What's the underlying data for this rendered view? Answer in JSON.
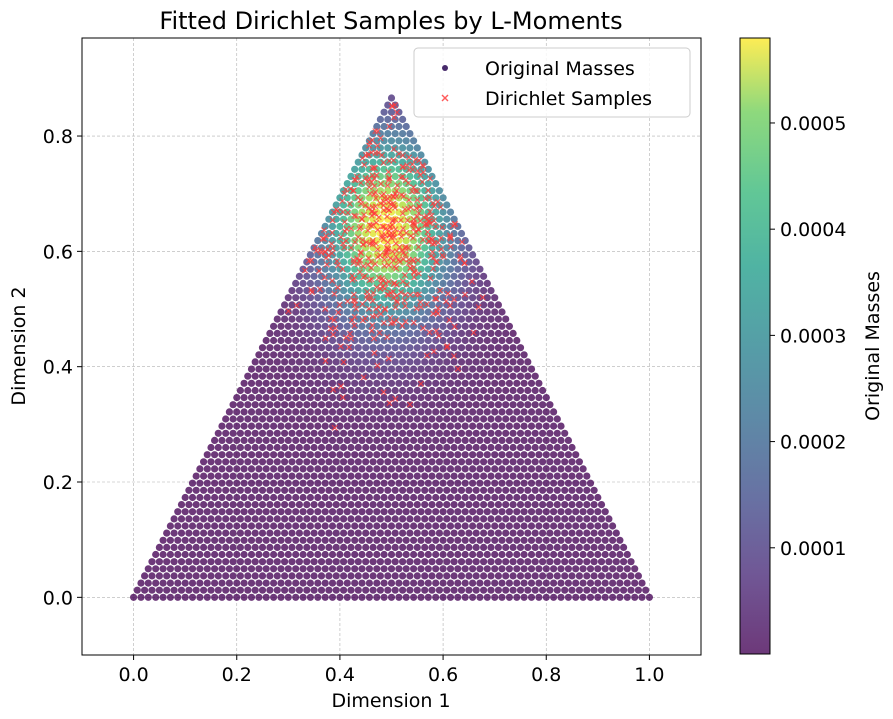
{
  "chart_data": {
    "type": "scatter",
    "title": "Fitted Dirichlet Samples by L-Moments",
    "xlabel": "Dimension 1",
    "ylabel": "Dimension 2",
    "xlim": [
      -0.1,
      1.1
    ],
    "ylim": [
      -0.1,
      0.97
    ],
    "xticks": [
      "0.0",
      "0.2",
      "0.4",
      "0.6",
      "0.8",
      "1.0"
    ],
    "yticks": [
      "0.0",
      "0.2",
      "0.4",
      "0.6",
      "0.8"
    ],
    "grid": true,
    "legend_position": "upper-right",
    "simplex_vertices": [
      [
        0.0,
        0.0
      ],
      [
        1.0,
        0.0
      ],
      [
        0.5,
        0.866
      ]
    ],
    "series": [
      {
        "name": "Original Masses",
        "marker": "circle",
        "color_map": "viridis",
        "legend_color": "#472a6b",
        "peak": [
          0.49,
          0.64
        ],
        "spread": [
          0.085,
          0.11
        ],
        "max_mass": 0.00058
      },
      {
        "name": "Dirichlet Samples",
        "marker": "x",
        "color": "#ff3a3a",
        "center": [
          0.49,
          0.6
        ],
        "count": 500
      }
    ],
    "colorbar": {
      "label": "Original Masses",
      "min": 0.0,
      "max": 0.00058,
      "ticks": [
        0.0001,
        0.0002,
        0.0003,
        0.0004,
        0.0005
      ],
      "tick_labels": [
        "0.0001",
        "0.0002",
        "0.0003",
        "0.0004",
        "0.0005"
      ]
    }
  }
}
